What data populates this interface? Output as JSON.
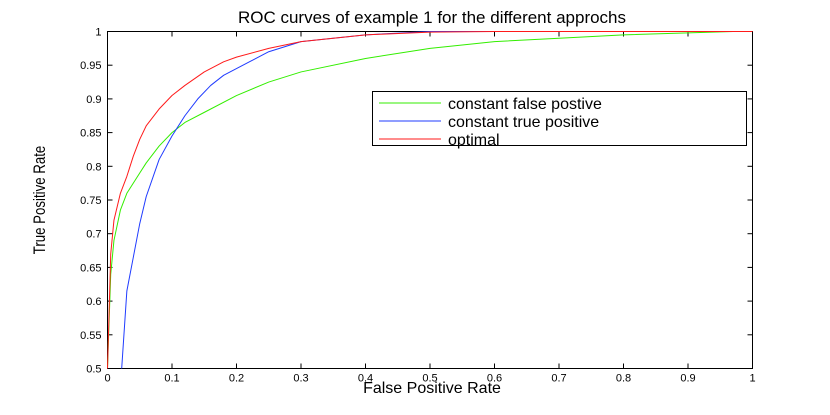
{
  "chart_data": {
    "type": "line",
    "title": "ROC curves of example 1 for the different approchs",
    "xlabel": "False Positive Rate",
    "ylabel": "True Positive Rate",
    "xlim": [
      0,
      1
    ],
    "ylim": [
      0.5,
      1
    ],
    "xticks": [
      "0",
      "0.1",
      "0.2",
      "0.3",
      "0.4",
      "0.5",
      "0.6",
      "0.7",
      "0.8",
      "0.9",
      "1"
    ],
    "yticks": [
      "0.5",
      "0.55",
      "0.6",
      "0.65",
      "0.7",
      "0.75",
      "0.8",
      "0.85",
      "0.9",
      "0.95",
      "1"
    ],
    "grid": false,
    "legend_position": "top-right",
    "series": [
      {
        "name": "constant false postive",
        "color": "#33ee00",
        "x": [
          0,
          0.005,
          0.01,
          0.02,
          0.03,
          0.04,
          0.05,
          0.06,
          0.08,
          0.1,
          0.12,
          0.15,
          0.2,
          0.25,
          0.3,
          0.4,
          0.5,
          0.6,
          0.7,
          0.8,
          0.9,
          0.97,
          1
        ],
        "y": [
          0.5,
          0.64,
          0.69,
          0.735,
          0.76,
          0.775,
          0.79,
          0.805,
          0.83,
          0.85,
          0.865,
          0.88,
          0.905,
          0.925,
          0.94,
          0.96,
          0.975,
          0.985,
          0.99,
          0.995,
          0.998,
          1,
          1
        ]
      },
      {
        "name": "constant true positive",
        "color": "#1f3bff",
        "x": [
          0.022,
          0.03,
          0.04,
          0.05,
          0.06,
          0.08,
          0.1,
          0.12,
          0.14,
          0.16,
          0.18,
          0.2,
          0.22,
          0.25,
          0.3,
          0.35,
          0.4,
          0.5,
          0.6,
          0.7,
          0.8,
          0.9,
          1
        ],
        "y": [
          0.5,
          0.615,
          0.665,
          0.715,
          0.755,
          0.81,
          0.845,
          0.875,
          0.9,
          0.92,
          0.935,
          0.945,
          0.955,
          0.97,
          0.985,
          0.99,
          0.995,
          1,
          1,
          1,
          1,
          1,
          1
        ]
      },
      {
        "name": "optimal",
        "color": "#ff1a1a",
        "x": [
          0,
          0.005,
          0.01,
          0.02,
          0.03,
          0.04,
          0.05,
          0.06,
          0.08,
          0.1,
          0.12,
          0.15,
          0.18,
          0.2,
          0.25,
          0.3,
          0.35,
          0.4,
          0.5,
          0.6,
          0.7,
          0.8,
          0.9,
          1
        ],
        "y": [
          0.5,
          0.67,
          0.72,
          0.76,
          0.785,
          0.815,
          0.84,
          0.86,
          0.885,
          0.905,
          0.92,
          0.94,
          0.955,
          0.962,
          0.975,
          0.985,
          0.99,
          0.995,
          0.999,
          1,
          1,
          1,
          1,
          1
        ]
      }
    ]
  }
}
